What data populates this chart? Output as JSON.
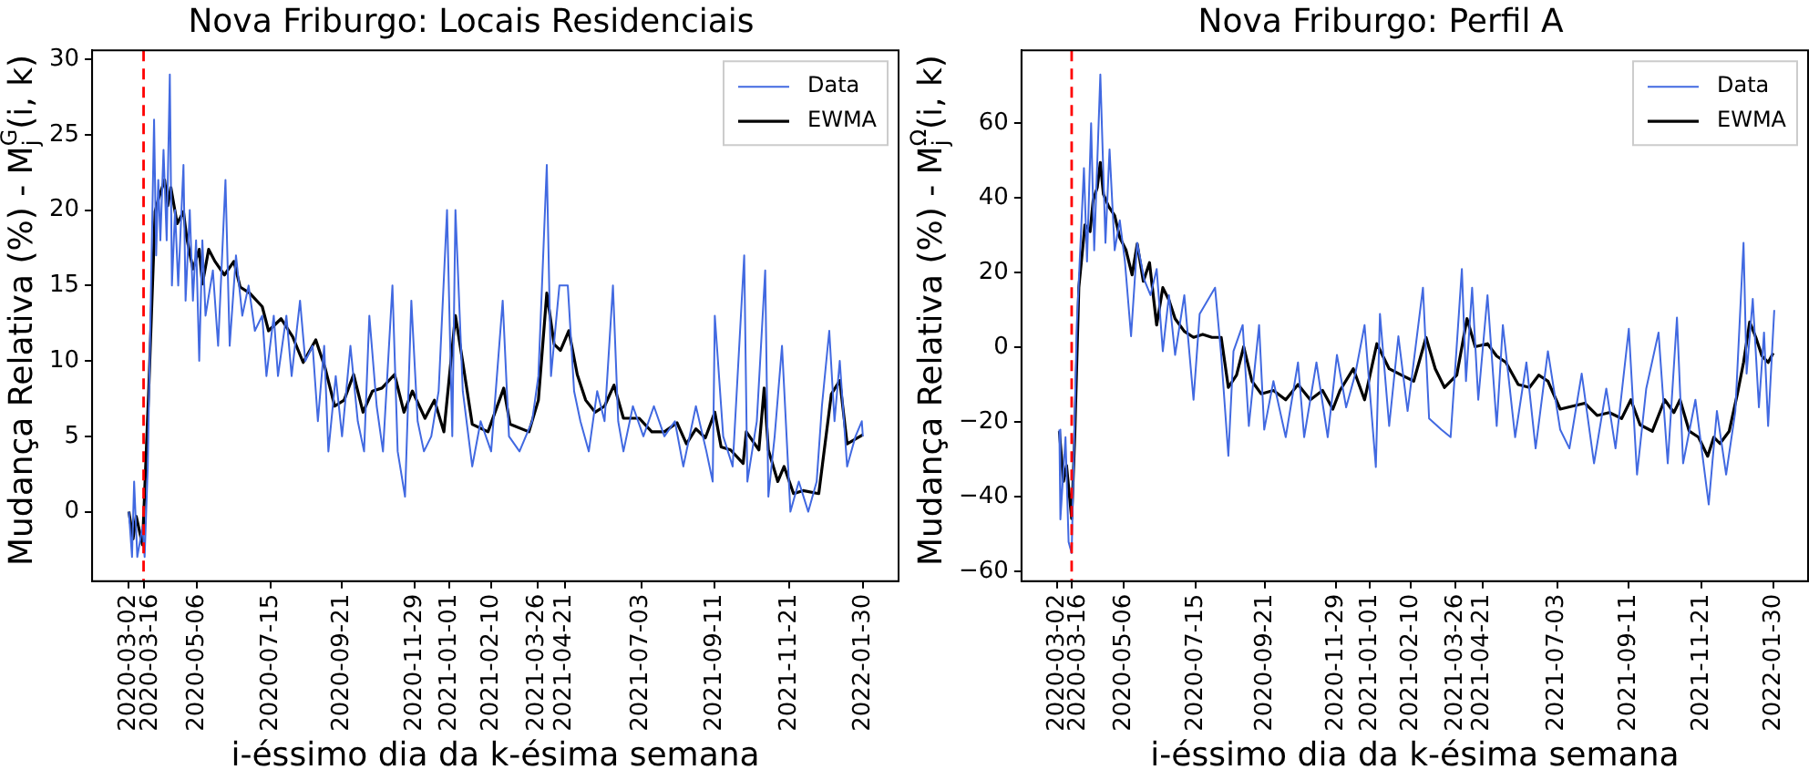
{
  "chart_data": [
    {
      "type": "line",
      "title": "Nova Friburgo: Locais Residenciais",
      "xlabel": "i-éssimo dia da k-ésima semana",
      "ylabel": "Mudança Relativa (%) - M$_{j}$$^{G}$(i, k)",
      "legend": "top right",
      "grid": false,
      "xlim": [
        "2020-01-27",
        "2022-03-05"
      ],
      "xticks": [
        "2020-03-02",
        "2020-03-16",
        "2020-05-06",
        "2020-07-15",
        "2020-09-21",
        "2020-11-29",
        "2021-01-01",
        "2021-02-10",
        "2021-03-26",
        "2021-04-21",
        "2021-07-03",
        "2021-09-11",
        "2021-11-21",
        "2022-01-30"
      ],
      "ylim": [
        -4.6,
        30.6
      ],
      "yticks": [
        0,
        5,
        10,
        15,
        20,
        25,
        30
      ],
      "ref_lines": [
        {
          "axis": "x",
          "value": "2020-03-16",
          "color": "#ff0000",
          "line_style": "dashed"
        }
      ],
      "series": [
        {
          "name": "Data",
          "color": "#4169e1",
          "x": [
            "2020-03-02",
            "2020-03-05",
            "2020-03-07",
            "2020-03-10",
            "2020-03-15",
            "2020-03-17",
            "2020-03-20",
            "2020-03-26",
            "2020-03-28",
            "2020-03-30",
            "2020-04-01",
            "2020-04-04",
            "2020-04-07",
            "2020-04-10",
            "2020-04-12",
            "2020-04-15",
            "2020-04-18",
            "2020-04-23",
            "2020-04-25",
            "2020-04-29",
            "2020-05-02",
            "2020-05-05",
            "2020-05-08",
            "2020-05-11",
            "2020-05-14",
            "2020-05-21",
            "2020-05-26",
            "2020-06-02",
            "2020-06-06",
            "2020-06-12",
            "2020-06-18",
            "2020-06-24",
            "2020-06-30",
            "2020-07-07",
            "2020-07-11",
            "2020-07-18",
            "2020-07-22",
            "2020-07-30",
            "2020-08-04",
            "2020-08-12",
            "2020-08-17",
            "2020-08-24",
            "2020-08-29",
            "2020-09-04",
            "2020-09-08",
            "2020-09-15",
            "2020-09-21",
            "2020-09-29",
            "2020-10-06",
            "2020-10-12",
            "2020-10-17",
            "2020-10-24",
            "2020-10-30",
            "2020-11-08",
            "2020-11-13",
            "2020-11-20",
            "2020-11-26",
            "2020-12-02",
            "2020-12-08",
            "2020-12-15",
            "2020-12-22",
            "2020-12-30",
            "2021-01-04",
            "2021-01-07",
            "2021-01-14",
            "2021-01-23",
            "2021-01-31",
            "2021-02-10",
            "2021-02-21",
            "2021-02-27",
            "2021-03-09",
            "2021-03-21",
            "2021-03-27",
            "2021-04-04",
            "2021-04-08",
            "2021-04-16",
            "2021-04-24",
            "2021-04-30",
            "2021-05-06",
            "2021-05-14",
            "2021-05-22",
            "2021-05-29",
            "2021-06-06",
            "2021-06-11",
            "2021-06-16",
            "2021-06-25",
            "2021-07-05",
            "2021-07-15",
            "2021-07-25",
            "2021-08-04",
            "2021-08-12",
            "2021-08-24",
            "2021-09-03",
            "2021-09-09",
            "2021-09-11",
            "2021-09-19",
            "2021-09-28",
            "2021-10-09",
            "2021-10-12",
            "2021-10-21",
            "2021-10-29",
            "2021-11-01",
            "2021-11-07",
            "2021-11-14",
            "2021-11-22",
            "2021-11-30",
            "2021-12-09",
            "2021-12-17",
            "2021-12-22",
            "2021-12-29",
            "2022-01-03",
            "2022-01-08",
            "2022-01-15",
            "2022-01-23",
            "2022-01-29",
            "2022-01-30"
          ],
          "values": [
            0,
            -3,
            2,
            -3,
            -1,
            -3,
            3,
            26,
            17,
            22,
            18,
            24,
            18,
            29,
            15,
            20,
            15,
            23,
            14,
            20,
            14,
            18,
            10,
            18,
            13,
            16,
            11,
            22,
            11,
            17,
            13,
            15,
            12,
            13,
            9,
            13,
            9,
            13,
            9,
            14,
            10,
            11,
            6,
            11,
            4,
            9,
            5,
            11,
            6,
            4,
            13,
            7,
            4,
            15,
            4,
            1,
            14,
            6,
            4,
            5,
            8,
            20,
            5,
            20,
            8,
            3,
            6,
            4,
            14,
            5,
            4,
            6,
            9,
            23,
            9,
            15,
            15,
            8,
            6,
            4,
            8,
            6,
            15,
            6,
            4,
            7,
            5,
            7,
            5,
            6,
            3,
            7,
            4,
            2,
            13,
            5,
            3,
            17,
            2,
            6,
            16,
            1,
            5,
            11,
            0,
            2,
            0,
            2,
            7,
            12,
            6,
            10,
            3,
            5,
            6,
            5
          ]
        },
        {
          "name": "EWMA",
          "color": "#000000",
          "x": [
            "2020-03-02",
            "2020-03-06",
            "2020-03-09",
            "2020-03-15",
            "2020-03-21",
            "2020-03-27",
            "2020-03-30",
            "2020-04-05",
            "2020-04-08",
            "2020-04-11",
            "2020-04-17",
            "2020-04-23",
            "2020-04-26",
            "2020-05-02",
            "2020-05-08",
            "2020-05-11",
            "2020-05-17",
            "2020-05-23",
            "2020-06-01",
            "2020-06-10",
            "2020-06-16",
            "2020-06-25",
            "2020-07-07",
            "2020-07-13",
            "2020-07-25",
            "2020-08-05",
            "2020-08-15",
            "2020-08-27",
            "2020-09-05",
            "2020-09-14",
            "2020-09-23",
            "2020-10-02",
            "2020-10-11",
            "2020-10-20",
            "2020-10-29",
            "2020-11-10",
            "2020-11-19",
            "2020-11-27",
            "2020-12-09",
            "2020-12-18",
            "2020-12-27",
            "2021-01-02",
            "2021-01-07",
            "2021-01-14",
            "2021-01-23",
            "2021-02-07",
            "2021-02-22",
            "2021-02-28",
            "2021-03-18",
            "2021-03-27",
            "2021-04-04",
            "2021-04-11",
            "2021-04-17",
            "2021-04-25",
            "2021-05-03",
            "2021-05-11",
            "2021-05-20",
            "2021-05-29",
            "2021-06-07",
            "2021-06-16",
            "2021-07-01",
            "2021-07-13",
            "2021-07-25",
            "2021-08-06",
            "2021-08-15",
            "2021-08-24",
            "2021-09-02",
            "2021-09-11",
            "2021-09-17",
            "2021-09-26",
            "2021-10-08",
            "2021-10-11",
            "2021-10-23",
            "2021-10-28",
            "2021-11-01",
            "2021-11-10",
            "2021-11-16",
            "2021-11-25",
            "2021-12-04",
            "2021-12-19",
            "2021-12-31",
            "2022-01-08",
            "2022-01-15",
            "2022-01-30"
          ],
          "values": [
            0,
            -1.8,
            -0.3,
            -2.2,
            8.2,
            19.9,
            20.7,
            22,
            20.3,
            21.5,
            19.1,
            19.9,
            18.2,
            16.1,
            17.4,
            15.1,
            17.4,
            16.6,
            15.7,
            16.6,
            14.9,
            14.5,
            13.6,
            12,
            12.8,
            11.6,
            9.9,
            11.4,
            9.5,
            7,
            7.4,
            9.1,
            6.6,
            8,
            8.2,
            9.1,
            6.6,
            8,
            6.2,
            7.4,
            5.3,
            9.5,
            13,
            9.9,
            5.8,
            5.3,
            8.2,
            5.8,
            5.3,
            7.4,
            14.5,
            11.1,
            10.7,
            12,
            9.1,
            7.4,
            6.6,
            7,
            8.4,
            6.2,
            6.2,
            5.3,
            5.3,
            5.9,
            4.5,
            5.5,
            4.9,
            6.6,
            4.3,
            4.1,
            3.2,
            5.3,
            4.1,
            8.2,
            4.1,
            2,
            3,
            1.2,
            1.4,
            1.2,
            7.8,
            8.7,
            4.5,
            5.1
          ]
        }
      ]
    },
    {
      "type": "line",
      "title": "Nova Friburgo: Perfil A",
      "xlabel": "i-éssimo dia da k-ésima semana",
      "ylabel": "Mudança Relativa (%) - M$_{j}$$^{Ω}$(i, k)",
      "legend": "top right",
      "grid": false,
      "xlim": [
        "2020-01-27",
        "2022-03-05"
      ],
      "xticks": [
        "2020-03-02",
        "2020-03-16",
        "2020-05-06",
        "2020-07-15",
        "2020-09-21",
        "2020-11-29",
        "2021-01-01",
        "2021-02-10",
        "2021-03-26",
        "2021-04-21",
        "2021-07-03",
        "2021-09-11",
        "2021-11-21",
        "2022-01-30"
      ],
      "ylim": [
        -62.5,
        79.5
      ],
      "yticks": [
        {
          "value": -60,
          "label": "−60"
        },
        {
          "value": -40,
          "label": "−40"
        },
        {
          "value": -20,
          "label": "−20"
        },
        0,
        20,
        40,
        60
      ],
      "ref_lines": [
        {
          "axis": "x",
          "value": "2020-03-16",
          "color": "#ff0000",
          "line_style": "dashed"
        }
      ],
      "series": [
        {
          "name": "Data",
          "color": "#4169e1",
          "x": [
            "2020-03-04",
            "2020-03-05",
            "2020-03-10",
            "2020-03-13",
            "2020-03-16",
            "2020-03-21",
            "2020-03-28",
            "2020-03-31",
            "2020-04-04",
            "2020-04-07",
            "2020-04-13",
            "2020-04-18",
            "2020-04-22",
            "2020-04-27",
            "2020-05-02",
            "2020-05-07",
            "2020-05-13",
            "2020-05-19",
            "2020-05-26",
            "2020-06-01",
            "2020-06-07",
            "2020-06-13",
            "2020-06-19",
            "2020-06-25",
            "2020-07-04",
            "2020-07-13",
            "2020-07-19",
            "2020-08-03",
            "2020-08-09",
            "2020-08-16",
            "2020-08-21",
            "2020-08-30",
            "2020-09-05",
            "2020-09-15",
            "2020-09-20",
            "2020-09-29",
            "2020-10-11",
            "2020-10-23",
            "2020-10-29",
            "2020-11-10",
            "2020-11-21",
            "2020-11-30",
            "2020-12-09",
            "2020-12-18",
            "2020-12-27",
            "2021-01-07",
            "2021-01-11",
            "2021-01-20",
            "2021-01-29",
            "2021-02-07",
            "2021-02-22",
            "2021-02-28",
            "2021-03-12",
            "2021-03-21",
            "2021-04-01",
            "2021-04-05",
            "2021-04-11",
            "2021-04-17",
            "2021-04-26",
            "2021-05-05",
            "2021-05-11",
            "2021-05-23",
            "2021-06-03",
            "2021-06-12",
            "2021-06-24",
            "2021-07-06",
            "2021-07-15",
            "2021-07-27",
            "2021-08-08",
            "2021-08-20",
            "2021-08-29",
            "2021-09-11",
            "2021-09-19",
            "2021-09-28",
            "2021-10-10",
            "2021-10-19",
            "2021-10-28",
            "2021-11-03",
            "2021-11-15",
            "2021-11-28",
            "2021-12-06",
            "2021-12-15",
            "2021-12-24",
            "2022-01-01",
            "2022-01-04",
            "2022-01-10",
            "2022-01-16",
            "2022-01-21",
            "2022-01-25",
            "2022-01-31"
          ],
          "values": [
            -22,
            -46,
            -24,
            -52,
            -55,
            6,
            48,
            23,
            60,
            26,
            73,
            28,
            53,
            26,
            34,
            23,
            3,
            28,
            18,
            14,
            21,
            -1,
            14,
            -2,
            14,
            -14,
            9,
            16,
            -2,
            -29,
            -1,
            6,
            -21,
            6,
            -22,
            -9,
            -24,
            -4,
            -24,
            -4,
            -24,
            -2,
            -16,
            -7,
            6,
            -32,
            9,
            -21,
            3,
            -17,
            16,
            -19,
            -22,
            -24,
            21,
            -9,
            16,
            -14,
            14,
            -21,
            6,
            -24,
            -4,
            -27,
            -1,
            -22,
            -27,
            -7,
            -31,
            -11,
            -27,
            5,
            -34,
            -11,
            4,
            -31,
            8,
            -31,
            -14,
            -42,
            -17,
            -34,
            -17,
            28,
            -7,
            13,
            -16,
            4,
            -21,
            10
          ]
        },
        {
          "name": "EWMA",
          "color": "#000000",
          "x": [
            "2020-03-04",
            "2020-03-08",
            "2020-03-11",
            "2020-03-16",
            "2020-03-19",
            "2020-03-23",
            "2020-03-29",
            "2020-04-03",
            "2020-04-06",
            "2020-04-10",
            "2020-04-13",
            "2020-04-16",
            "2020-04-21",
            "2020-04-27",
            "2020-05-02",
            "2020-05-08",
            "2020-05-14",
            "2020-05-19",
            "2020-05-25",
            "2020-05-31",
            "2020-06-07",
            "2020-06-13",
            "2020-06-19",
            "2020-06-25",
            "2020-07-04",
            "2020-07-13",
            "2020-07-22",
            "2020-07-31",
            "2020-08-09",
            "2020-08-16",
            "2020-08-24",
            "2020-08-31",
            "2020-09-08",
            "2020-09-17",
            "2020-09-29",
            "2020-10-11",
            "2020-10-23",
            "2020-11-04",
            "2020-11-16",
            "2020-11-26",
            "2020-12-03",
            "2020-12-16",
            "2020-12-27",
            "2021-01-08",
            "2021-01-20",
            "2021-02-01",
            "2021-02-13",
            "2021-02-25",
            "2021-03-06",
            "2021-03-15",
            "2021-03-27",
            "2021-04-06",
            "2021-04-14",
            "2021-04-26",
            "2021-05-05",
            "2021-05-14",
            "2021-05-26",
            "2021-06-06",
            "2021-06-15",
            "2021-06-24",
            "2021-07-06",
            "2021-07-18",
            "2021-07-30",
            "2021-08-11",
            "2021-08-23",
            "2021-09-04",
            "2021-09-13",
            "2021-09-22",
            "2021-10-04",
            "2021-10-16",
            "2021-10-25",
            "2021-10-31",
            "2021-11-09",
            "2021-11-18",
            "2021-11-27",
            "2021-12-03",
            "2021-12-09",
            "2021-12-18",
            "2021-12-26",
            "2022-01-01",
            "2022-01-07",
            "2022-01-13",
            "2022-01-19",
            "2022-01-25",
            "2022-01-30"
          ],
          "values": [
            -22.4,
            -35.8,
            -31.6,
            -45.8,
            -24,
            16,
            32.8,
            31,
            39.4,
            42.8,
            49.5,
            41,
            37.8,
            35.3,
            29.4,
            26.1,
            19.4,
            27.7,
            17.7,
            22.7,
            6,
            16,
            12.7,
            7.7,
            4.3,
            2.7,
            3.5,
            2.7,
            2.7,
            -10.7,
            -7.4,
            0.2,
            -9,
            -12.4,
            -11.5,
            -14,
            -9.9,
            -14,
            -11.5,
            -16.5,
            -11.5,
            -5.7,
            -14,
            1,
            -5.7,
            -7.4,
            -9,
            2.7,
            -5.7,
            -10.7,
            -7.4,
            7.7,
            0.2,
            1,
            -2.3,
            -4,
            -9.9,
            -10.7,
            -7.4,
            -9,
            -16.5,
            -15.7,
            -14.9,
            -18.2,
            -17.4,
            -19,
            -14,
            -20.7,
            -22.4,
            -14,
            -17.4,
            -14,
            -22.4,
            -24,
            -29.1,
            -24,
            -25.7,
            -22.4,
            -12.4,
            -4,
            6.8,
            2.7,
            -2.3,
            -4,
            -1.5
          ]
        }
      ]
    }
  ]
}
